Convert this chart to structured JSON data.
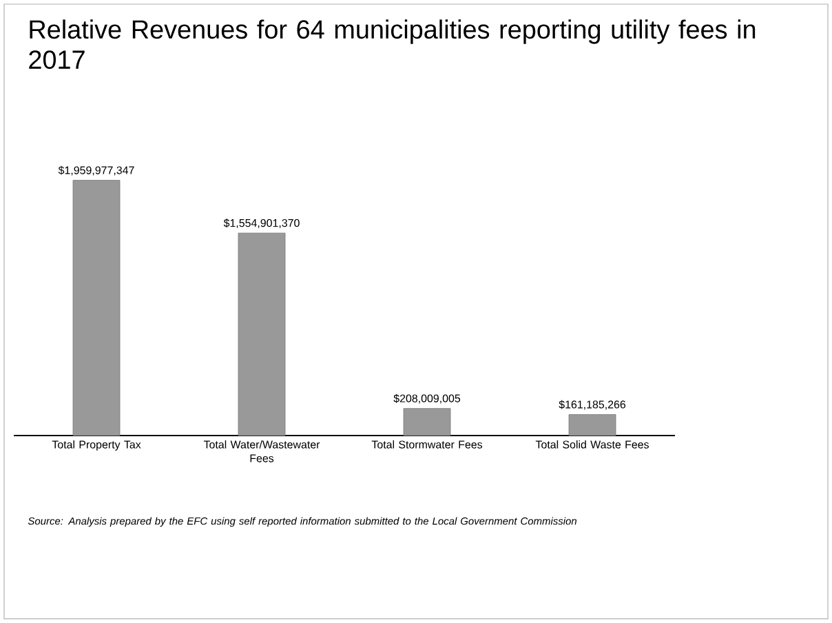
{
  "chart_data": {
    "type": "bar",
    "title": "Relative Revenues for 64 municipalities reporting utility fees in 2017",
    "categories": [
      "Total Property Tax",
      "Total Water/Wastewater Fees",
      "Total Stormwater Fees",
      "Total Solid Waste Fees"
    ],
    "values": [
      1959977347,
      1554901370,
      208009005,
      161185266
    ],
    "value_labels": [
      "$1,959,977,347",
      "$1,554,901,370",
      "$208,009,005",
      "$161,185,266"
    ],
    "color": "#999999",
    "annotations": [
      "Source: Analysis prepared by the EFC using self reported information submitted to the Local Government Commission"
    ]
  }
}
